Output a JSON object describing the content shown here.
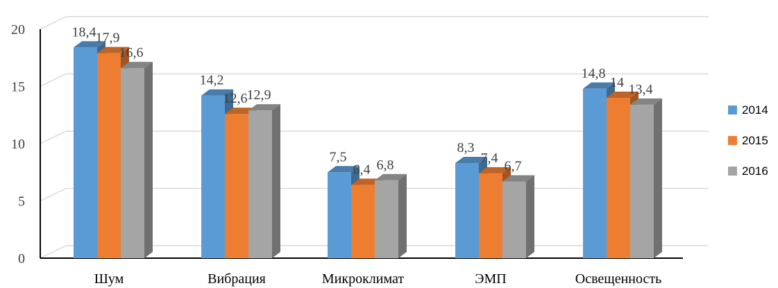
{
  "chart_data": {
    "type": "bar",
    "categories": [
      "Шум",
      "Вибрация",
      "Микроклимат",
      "ЭМП",
      "Освещенность"
    ],
    "series": [
      {
        "name": "2014",
        "color": "#5b9bd5",
        "values": [
          18.4,
          14.2,
          7.5,
          8.3,
          14.8
        ],
        "labels": [
          "18,4",
          "14,2",
          "7,5",
          "8,3",
          "14,8"
        ]
      },
      {
        "name": "2015",
        "color": "#ed7d31",
        "values": [
          17.9,
          12.6,
          6.4,
          7.4,
          14.0
        ],
        "labels": [
          "17,9",
          "12,6",
          "6,4",
          "7,4",
          "14"
        ]
      },
      {
        "name": "2016",
        "color": "#a5a5a5",
        "values": [
          16.6,
          12.9,
          6.8,
          6.7,
          13.4
        ],
        "labels": [
          "16,6",
          "12,9",
          "6,8",
          "6,7",
          "13,4"
        ]
      }
    ],
    "yticks": [
      "0",
      "5",
      "10",
      "15",
      "20"
    ],
    "ylim": [
      0,
      20
    ],
    "grid": true,
    "legend": "right",
    "style": "3d-columns"
  }
}
